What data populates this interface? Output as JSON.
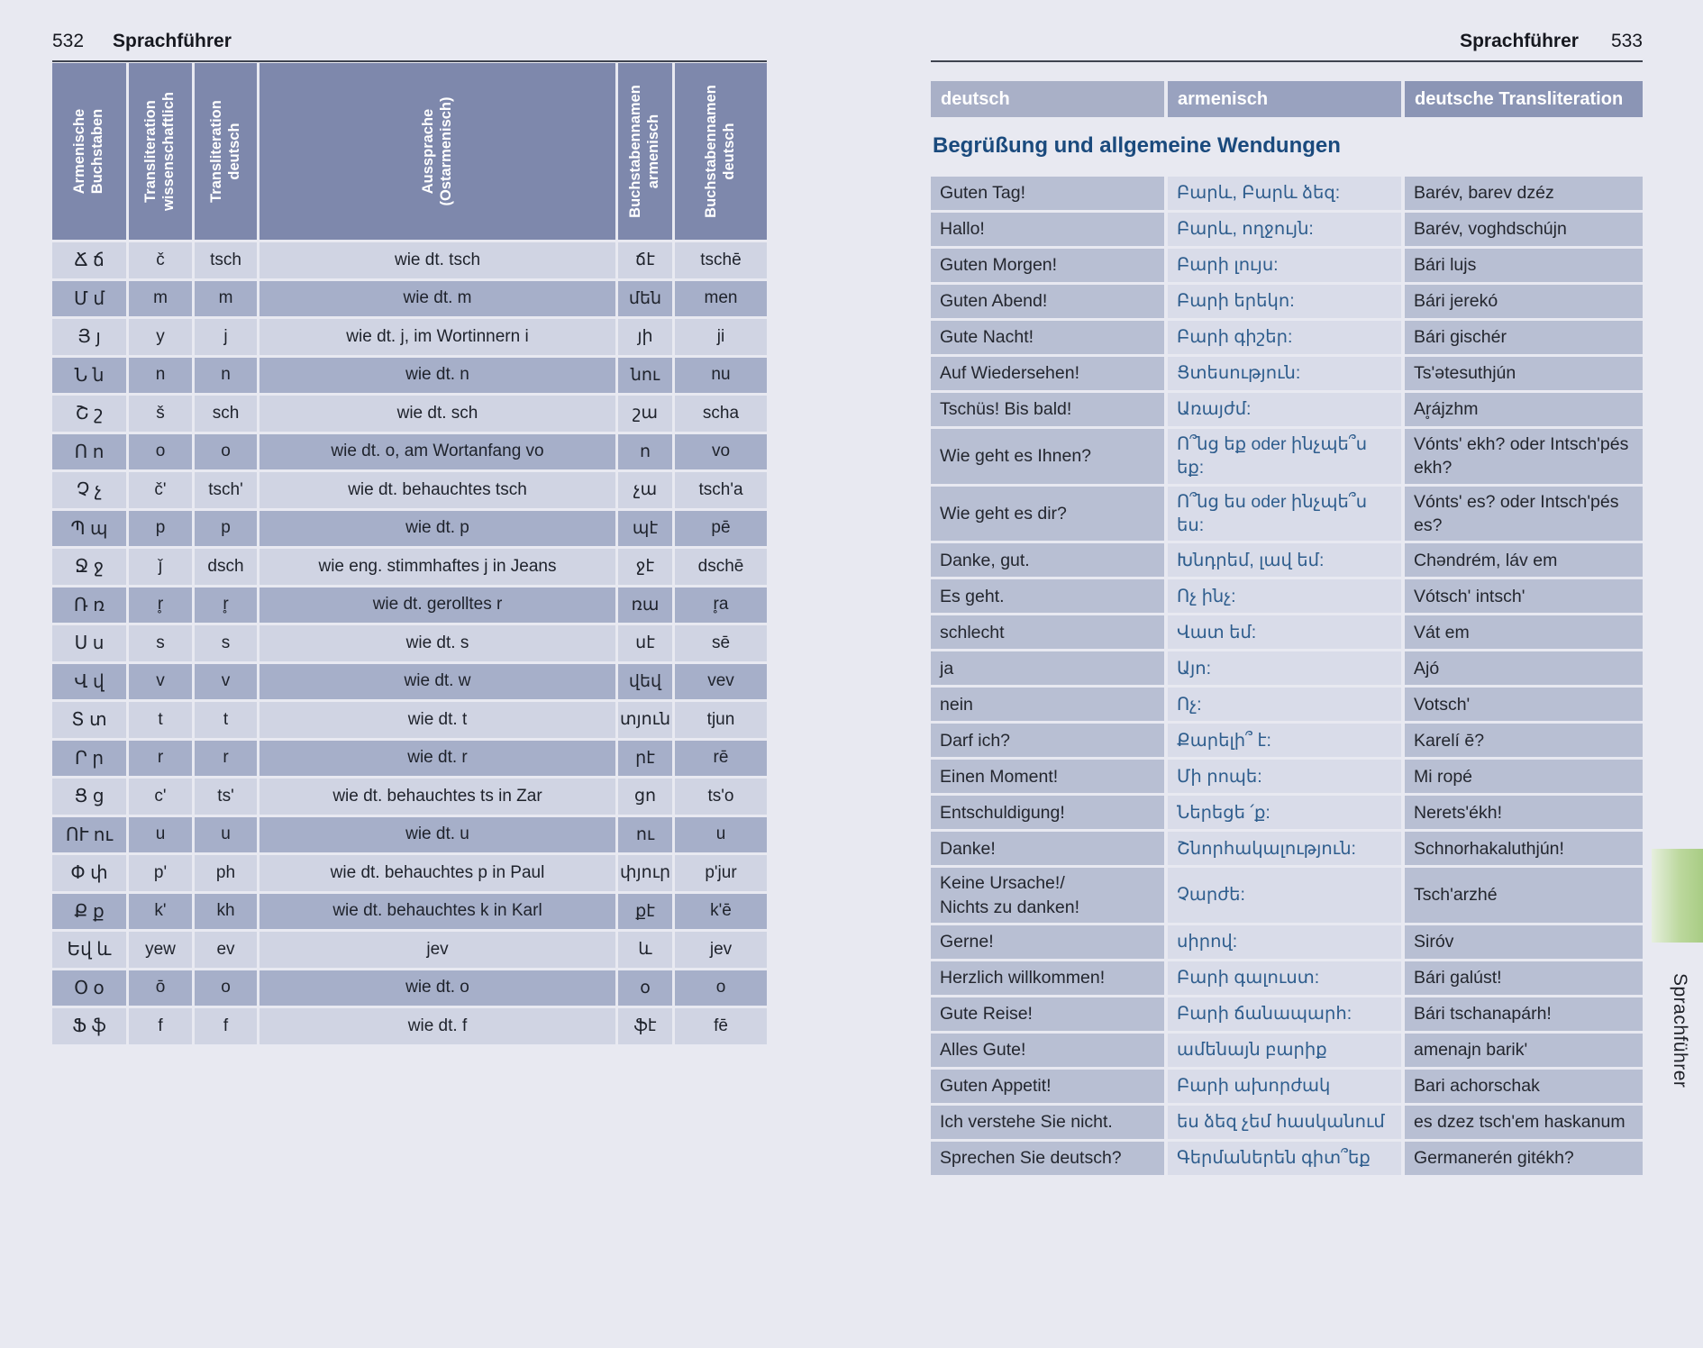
{
  "left_page": {
    "page_number": "532",
    "header_title": "Sprachführer",
    "alphabet_table": {
      "headers": [
        "Armenische\nBuchstaben",
        "Transliteration\nwissenschaftlich",
        "Transliteration\ndeutsch",
        "Aussprache\n(Ostarmenisch)",
        "Buchstabennamen\narmenisch",
        "Buchstabennamen\ndeutsch"
      ],
      "rows": [
        [
          "Ճ ճ",
          "č",
          "tsch",
          "wie dt. tsch",
          "ճէ",
          "tschē"
        ],
        [
          "Մ մ",
          "m",
          "m",
          "wie dt. m",
          "մեն",
          "men"
        ],
        [
          "Յ յ",
          "y",
          "j",
          "wie dt. j, im Wortinnern i",
          "յի",
          "ji"
        ],
        [
          "Ն ն",
          "n",
          "n",
          "wie dt. n",
          "նու",
          "nu"
        ],
        [
          "Շ շ",
          "š",
          "sch",
          "wie dt. sch",
          "շա",
          "scha"
        ],
        [
          "Ո ո",
          "o",
          "o",
          "wie dt. o, am Wortanfang vo",
          "ո",
          "vo"
        ],
        [
          "Չ չ",
          "č'",
          "tsch'",
          "wie dt. behauchtes tsch",
          "չա",
          "tsch'a"
        ],
        [
          "Պ պ",
          "p",
          "p",
          "wie dt. p",
          "պէ",
          "pē"
        ],
        [
          "Ջ ջ",
          "ǰ",
          "dsch",
          "wie eng. stimmhaftes j in Jeans",
          "ջէ",
          "dschē"
        ],
        [
          "Ռ ռ",
          "r̥",
          "r̥",
          "wie dt. gerolltes r",
          "ռա",
          "r̥a"
        ],
        [
          "Ս ս",
          "s",
          "s",
          "wie dt. s",
          "սէ",
          "sē"
        ],
        [
          "Վ վ",
          "v",
          "v",
          "wie dt. w",
          "վեվ",
          "vev"
        ],
        [
          "Տ տ",
          "t",
          "t",
          "wie dt. t",
          "տյուն",
          "tjun"
        ],
        [
          "Ր ր",
          "r",
          "r",
          "wie dt. r",
          "րէ",
          "rē"
        ],
        [
          "Ց ց",
          "c'",
          "ts'",
          "wie dt. behauchtes ts in Zar",
          "ցո",
          "ts'o"
        ],
        [
          "ՈՒ ու",
          "u",
          "u",
          "wie dt. u",
          "ու",
          "u"
        ],
        [
          "Փ փ",
          "p'",
          "ph",
          "wie dt. behauchtes p in Paul",
          "փյուր",
          "p'jur"
        ],
        [
          "Ք ք",
          "k'",
          "kh",
          "wie dt. behauchtes k in Karl",
          "քէ",
          "k'ē"
        ],
        [
          "Եվ և",
          "yew",
          "ev",
          "jev",
          "և",
          "jev"
        ],
        [
          "Օ օ",
          "ō",
          "o",
          "wie dt. o",
          "օ",
          "o"
        ],
        [
          "Ֆ ֆ",
          "f",
          "f",
          "wie dt. f",
          "ֆէ",
          "fē"
        ]
      ]
    }
  },
  "right_page": {
    "header_title": "Sprachführer",
    "page_number": "533",
    "phrase_table": {
      "headers": [
        "deutsch",
        "armenisch",
        "deutsche Transliteration"
      ],
      "section_title": "Begrüßung und allgemeine Wendungen",
      "rows": [
        {
          "de": "Guten Tag!",
          "hy": "Բարև, Բարև ձեզ:",
          "tr": "Barév, barev dzéz"
        },
        {
          "de": "Hallo!",
          "hy": "Բարև, ողջույն:",
          "tr": "Barév, voghdschújn"
        },
        {
          "de": "Guten Morgen!",
          "hy": "Բարի լույս:",
          "tr": "Bári lujs"
        },
        {
          "de": "Guten Abend!",
          "hy": "Բարի երեկո:",
          "tr": "Bári jerekó"
        },
        {
          "de": "Gute Nacht!",
          "hy": "Բարի գիշեր:",
          "tr": "Bári gischér"
        },
        {
          "de": "Auf Wiedersehen!",
          "hy": "Ցտեսություն:",
          "tr": "Ts'ətesuthjún"
        },
        {
          "de": "Tschüs! Bis bald!",
          "hy": "Առայժմ:",
          "tr": "Ar̥ájzhm"
        },
        {
          "de": "Wie geht es Ihnen?",
          "hy": "Ո՞նց եք oder ինչպե՞ս եք:",
          "tr": "Vónts' ekh? oder Intsch'pés ekh?"
        },
        {
          "de": "Wie geht es dir?",
          "hy": "Ո՞նց ես oder ինչպե՞ս ես:",
          "tr": "Vónts' es? oder Intsch'pés es?"
        },
        {
          "de": "Danke, gut.",
          "hy": "Խնդրեմ, լավ եմ:",
          "tr": "Chəndrém, láv em"
        },
        {
          "de": "Es geht.",
          "hy": "Ոչ ինչ:",
          "tr": "Vótsch' intsch'"
        },
        {
          "de": "schlecht",
          "hy": "Վատ եմ:",
          "tr": "Vát em"
        },
        {
          "de": "ja",
          "hy": "Այո:",
          "tr": "Ajó"
        },
        {
          "de": "nein",
          "hy": "Ոչ:",
          "tr": "Votsch'"
        },
        {
          "de": "Darf ich?",
          "hy": "Քարելի՞ է:",
          "tr": "Karelí ē?"
        },
        {
          "de": "Einen Moment!",
          "hy": "Մի րոպե:",
          "tr": "Mi ropé"
        },
        {
          "de": "Entschuldigung!",
          "hy": "Ներեցե ՛ք:",
          "tr": "Nerets'ékh!"
        },
        {
          "de": "Danke!",
          "hy": "Շնորհակալություն:",
          "tr": "Schnorhakaluthjún!"
        },
        {
          "de": "Keine Ursache!/\nNichts zu danken!",
          "hy": "Չարժե:",
          "tr": "Tsch'arzhé"
        },
        {
          "de": "Gerne!",
          "hy": "սիրով:",
          "tr": "Siróv"
        },
        {
          "de": "Herzlich willkommen!",
          "hy": "Բարի գալուստ:",
          "tr": "Bári galúst!"
        },
        {
          "de": "Gute Reise!",
          "hy": "Բարի ճանապարհ:",
          "tr": "Bári tschanapárh!"
        },
        {
          "de": "Alles Gute!",
          "hy": "ամենայն բարիք",
          "tr": "amenajn barik'"
        },
        {
          "de": "Guten Appetit!",
          "hy": "Բարի ախորժակ",
          "tr": "Bari achorschak"
        },
        {
          "de": "Ich verstehe Sie nicht.",
          "hy": "ես ձեզ չեմ հասկանում",
          "tr": "es dzez tsch'em haskanum"
        },
        {
          "de": "Sprechen Sie deutsch?",
          "hy": "Գերմաներեն գիտ՞եք",
          "tr": "Germanerén gitékh?"
        }
      ]
    },
    "side_tab": {
      "label": "Sprachführer"
    }
  },
  "colors": {
    "page_background": "#e8e9f1",
    "table_header": "#7e88ac",
    "row_light": "#d0d4e3",
    "row_dark": "#a6afc9",
    "phrase_outer_cell": "#b8bfd3",
    "phrase_middle_cell": "#d9dce9",
    "armenian_text": "#2e5d8d",
    "section_heading": "#1a4a7d",
    "tab_green": "#a8cc84"
  }
}
